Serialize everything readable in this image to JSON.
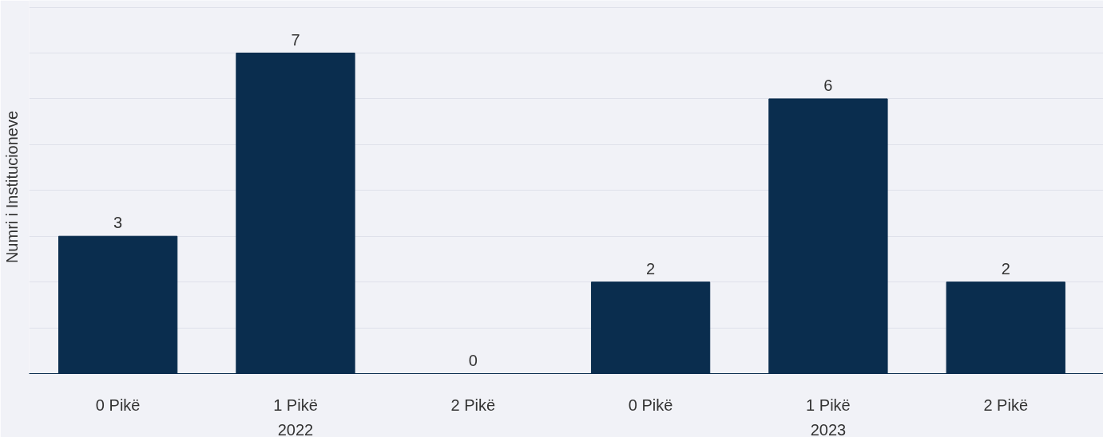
{
  "chart_data": {
    "type": "bar",
    "ylabel": "Numri i Institucioneve",
    "categories": [
      "0 Pikë",
      "1 Pikë",
      "2 Pikë",
      "0 Pikë",
      "1 Pikë",
      "2 Pikë"
    ],
    "values": [
      3,
      7,
      0,
      2,
      6,
      2
    ],
    "color": "#0a2d4e",
    "annotations": [
      "2022",
      "2023"
    ],
    "ylim": [
      0,
      8.15
    ],
    "yticks": [
      {
        "value": 0,
        "label": null
      },
      {
        "value": 1,
        "label": null
      },
      {
        "value": 2,
        "label": null
      },
      {
        "value": 3,
        "label": null
      },
      {
        "value": 4,
        "label": null
      },
      {
        "value": 5,
        "label": null
      },
      {
        "value": 6,
        "label": null
      },
      {
        "value": 7,
        "label": null
      },
      {
        "value": 8,
        "label": null
      }
    ],
    "tick_labels": "x",
    "grid": "y",
    "data_labels": true
  }
}
